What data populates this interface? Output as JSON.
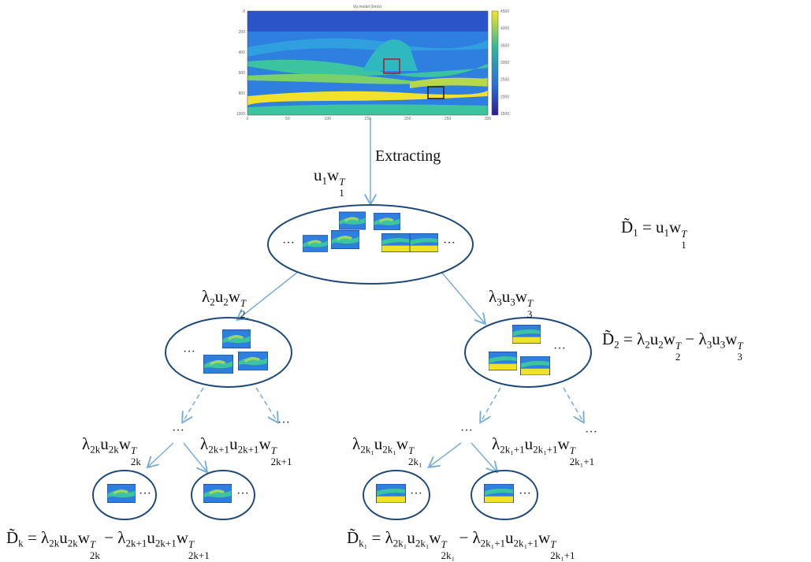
{
  "image": {
    "title": "Vp model (km/s)",
    "xticks": [
      "0",
      "50",
      "100",
      "150",
      "200",
      "250",
      "300"
    ],
    "yticks": [
      "0",
      "200",
      "400",
      "600",
      "800",
      "1000"
    ],
    "colorbar_ticks": [
      "4500",
      "4000",
      "3500",
      "3000",
      "2500",
      "2000",
      "1500"
    ]
  },
  "labels": {
    "extracting": "Extracting",
    "ellipsis": "···"
  },
  "formulas": [
    {
      "pieces": [
        {
          "b": "u",
          "sub": "1"
        },
        {
          "b": "w",
          "sub": "1",
          "sup": "T"
        }
      ]
    },
    {
      "pieces": [
        {
          "b": "D̃",
          "sub": "1"
        },
        {
          "b": " = "
        },
        {
          "b": "u",
          "sub": "1"
        },
        {
          "b": "w",
          "sub": "1",
          "sup": "T"
        }
      ]
    },
    {
      "pieces": [
        {
          "b": "λ",
          "sub": "2"
        },
        {
          "b": "u",
          "sub": "2"
        },
        {
          "b": "w",
          "sub": "2",
          "sup": "T"
        }
      ]
    },
    {
      "pieces": [
        {
          "b": "λ",
          "sub": "3"
        },
        {
          "b": "u",
          "sub": "3"
        },
        {
          "b": "w",
          "sub": "3",
          "sup": "T"
        }
      ]
    },
    {
      "pieces": [
        {
          "b": "D̃",
          "sub": "2"
        },
        {
          "b": " = "
        },
        {
          "b": "λ",
          "sub": "2"
        },
        {
          "b": "u",
          "sub": "2"
        },
        {
          "b": "w",
          "sub": "2",
          "sup": "T"
        },
        {
          "b": " − "
        },
        {
          "b": "λ",
          "sub": "3"
        },
        {
          "b": "u",
          "sub": "3"
        },
        {
          "b": "w",
          "sub": "3",
          "sup": "T"
        }
      ]
    },
    {
      "pieces": [
        {
          "b": "λ",
          "sub": "2k"
        },
        {
          "b": "u",
          "sub": "2k"
        },
        {
          "b": "w",
          "sub": "2k",
          "sup": "T"
        }
      ]
    },
    {
      "pieces": [
        {
          "b": "λ",
          "sub": "2k+1"
        },
        {
          "b": "u",
          "sub": "2k+1"
        },
        {
          "b": "w",
          "sub": "2k+1",
          "sup": "T"
        }
      ]
    },
    {
      "pieces": [
        {
          "b": "λ",
          "sub": "2k₁"
        },
        {
          "b": "u",
          "sub": "2k₁"
        },
        {
          "b": "w",
          "sub": "2k₁",
          "sup": "T"
        }
      ]
    },
    {
      "pieces": [
        {
          "b": "λ",
          "sub": "2k₁+1"
        },
        {
          "b": "u",
          "sub": "2k₁+1"
        },
        {
          "b": "w",
          "sub": "2k₁+1",
          "sup": "T"
        }
      ]
    },
    {
      "pieces": [
        {
          "b": "D̃",
          "sub": "k"
        },
        {
          "b": " = "
        },
        {
          "b": "λ",
          "sub": "2k"
        },
        {
          "b": "u",
          "sub": "2k"
        },
        {
          "b": "w",
          "sub": "2k",
          "sup": "T"
        },
        {
          "b": " − "
        },
        {
          "b": "λ",
          "sub": "2k+1"
        },
        {
          "b": "u",
          "sub": "2k+1"
        },
        {
          "b": "w",
          "sub": "2k+1",
          "sup": "T"
        }
      ]
    },
    {
      "pieces": [
        {
          "b": "D̃",
          "sub": "k₁"
        },
        {
          "b": " = "
        },
        {
          "b": "λ",
          "sub": "2k₁"
        },
        {
          "b": "u",
          "sub": "2k₁"
        },
        {
          "b": "w",
          "sub": "2k₁",
          "sup": "T"
        },
        {
          "b": " − "
        },
        {
          "b": "λ",
          "sub": "2k₁+1"
        },
        {
          "b": "u",
          "sub": "2k₁+1"
        },
        {
          "b": "w",
          "sub": "2k₁+1",
          "sup": "T"
        }
      ]
    }
  ]
}
